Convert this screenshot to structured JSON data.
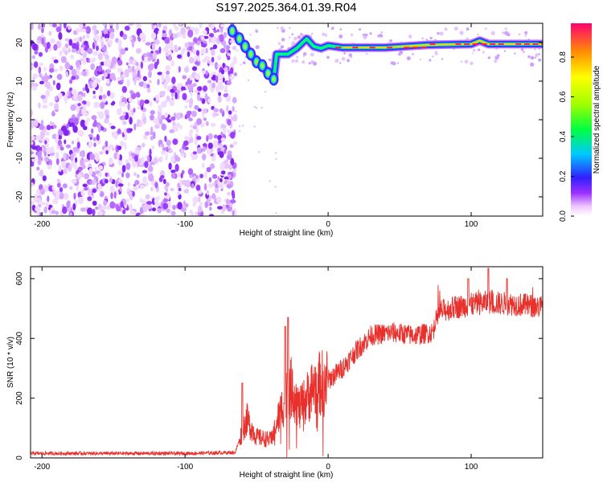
{
  "title": "S197.2025.364.01.39.R04",
  "spectrogram": {
    "type": "heatmap",
    "xlabel": "Height of straight line (km)",
    "ylabel": "Frequency (Hz)",
    "xlim": [
      -208,
      150
    ],
    "ylim": [
      -25,
      25
    ],
    "xticks": [
      -200,
      -100,
      0,
      100
    ],
    "yticks": [
      -20,
      -10,
      0,
      10,
      20
    ],
    "noise_region_x": [
      -208,
      -67
    ],
    "signal_ridge": [
      [
        -67,
        23
      ],
      [
        -62,
        21
      ],
      [
        -58,
        19
      ],
      [
        -54,
        17
      ],
      [
        -50,
        15
      ],
      [
        -46,
        14
      ],
      [
        -42,
        12
      ],
      [
        -38,
        10.5
      ],
      [
        -36,
        17
      ],
      [
        -28,
        17
      ],
      [
        -22,
        18.5
      ],
      [
        -15,
        21
      ],
      [
        -10,
        19
      ],
      [
        -5,
        18.5
      ],
      [
        0,
        19.2
      ],
      [
        10,
        18.7
      ],
      [
        40,
        18.7
      ],
      [
        70,
        19.4
      ],
      [
        100,
        19.6
      ],
      [
        106,
        20.5
      ],
      [
        112,
        19.6
      ],
      [
        150,
        19.6
      ]
    ]
  },
  "colorbar": {
    "label": "Normalized spectral amplitude",
    "ticks": [
      "0.0",
      "0.2",
      "0.4",
      "0.6",
      "0.8"
    ],
    "tick_values": [
      0,
      0.2,
      0.4,
      0.6,
      0.8
    ],
    "range": [
      0,
      0.97
    ]
  },
  "chart_data": [
    {
      "type": "heatmap",
      "title": "S197.2025.364.01.39.R04",
      "xlabel": "Height of straight line (km)",
      "ylabel": "Frequency (Hz)",
      "xlim": [
        -208,
        150
      ],
      "ylim": [
        -25,
        25
      ],
      "colorbar_label": "Normalized spectral amplitude",
      "colorbar_range": [
        0,
        0.97
      ],
      "ridge_frequency_hz": [
        {
          "x": -67,
          "y": 23
        },
        {
          "x": -50,
          "y": 15
        },
        {
          "x": -38,
          "y": 10.5
        },
        {
          "x": -30,
          "y": 17
        },
        {
          "x": -15,
          "y": 21
        },
        {
          "x": 0,
          "y": 19.2
        },
        {
          "x": 50,
          "y": 18.7
        },
        {
          "x": 100,
          "y": 19.6
        },
        {
          "x": 150,
          "y": 19.6
        }
      ]
    },
    {
      "type": "line",
      "xlabel": "Height of straight line (km)",
      "ylabel": "SNR (10 * v/v)",
      "xlim": [
        -208,
        150
      ],
      "ylim": [
        0,
        640
      ],
      "xticks": [
        -200,
        -100,
        0,
        100
      ],
      "yticks": [
        0,
        200,
        400,
        600
      ],
      "series": [
        {
          "name": "SNR",
          "color": "#e8302c",
          "envelope": [
            {
              "x": -208,
              "y": 15
            },
            {
              "x": -100,
              "y": 15
            },
            {
              "x": -65,
              "y": 18
            },
            {
              "x": -57,
              "y": 130
            },
            {
              "x": -50,
              "y": 70
            },
            {
              "x": -40,
              "y": 60
            },
            {
              "x": -30,
              "y": 200
            },
            {
              "x": -25,
              "y": 240
            },
            {
              "x": -20,
              "y": 160
            },
            {
              "x": -10,
              "y": 240
            },
            {
              "x": 0,
              "y": 260
            },
            {
              "x": 10,
              "y": 300
            },
            {
              "x": 20,
              "y": 360
            },
            {
              "x": 30,
              "y": 410
            },
            {
              "x": 45,
              "y": 420
            },
            {
              "x": 60,
              "y": 410
            },
            {
              "x": 73,
              "y": 420
            },
            {
              "x": 78,
              "y": 490
            },
            {
              "x": 90,
              "y": 505
            },
            {
              "x": 110,
              "y": 520
            },
            {
              "x": 130,
              "y": 515
            },
            {
              "x": 150,
              "y": 505
            }
          ],
          "peaks": [
            {
              "x": -60,
              "y": 250
            },
            {
              "x": -28,
              "y": 470
            },
            {
              "x": -30,
              "y": 440
            },
            {
              "x": 112,
              "y": 635
            },
            {
              "x": 98,
              "y": 600
            },
            {
              "x": 125,
              "y": 600
            }
          ]
        }
      ]
    }
  ],
  "snr": {
    "xlabel": "Height of straight line (km)",
    "ylabel": "SNR (10 * v/v)",
    "xticks": [
      -200,
      -100,
      0,
      100
    ],
    "yticks": [
      0,
      200,
      400,
      600
    ]
  },
  "colors": {
    "line": "#e8302c",
    "noise": "#8a2be2"
  }
}
